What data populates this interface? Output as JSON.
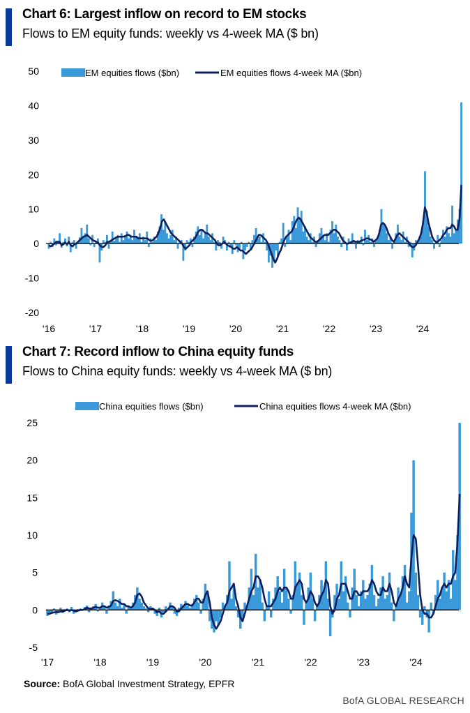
{
  "footer": {
    "source_label": "Source:",
    "source_text": " BofA Global Investment Strategy, EPFR",
    "brand": "BofA GLOBAL RESEARCH"
  },
  "colors": {
    "bar": "#3a9ad9",
    "line": "#0d1f5c",
    "accent": "#0a3a9c",
    "axis": "#000000"
  },
  "chart_data": [
    {
      "id": "chart6",
      "type": "bar",
      "title": "Chart 6: Largest inflow on record to EM stocks",
      "subtitle": "Flows to EM equity funds: weekly vs 4-week MA ($ bn)",
      "xlabel": "",
      "ylabel": "",
      "ylim": [
        -20,
        50
      ],
      "yticks": [
        50,
        40,
        30,
        20,
        10,
        0,
        -10,
        -20
      ],
      "xticks": [
        "'16",
        "'17",
        "'18",
        "'19",
        "'20",
        "'21",
        "'22",
        "'23",
        "'24"
      ],
      "x_start_year": 2016.0,
      "x_end_year": 2024.83,
      "legend": {
        "position": "top",
        "entries": [
          "EM equities flows ($bn)",
          "EM equities flows 4-week MA ($bn)"
        ]
      },
      "series": [
        {
          "name": "EM equities flows ($bn)",
          "kind": "bar",
          "values": [
            -1.5,
            0.5,
            -1.0,
            1.5,
            -0.5,
            0.8,
            3.0,
            -1.2,
            0.5,
            1.5,
            -0.8,
            2.0,
            -2.5,
            0.5,
            1.0,
            -1.5,
            0.2,
            1.8,
            4.5,
            2.0,
            3.0,
            5.5,
            1.5,
            -0.5,
            2.5,
            -1.0,
            0.5,
            1.5,
            -5.5,
            -2.0,
            1.0,
            0.5,
            2.5,
            -1.5,
            1.0,
            3.5,
            0.8,
            1.5,
            2.5,
            0.5,
            3.0,
            1.0,
            2.0,
            3.5,
            1.5,
            2.5,
            1.0,
            4.0,
            2.0,
            1.5,
            3.0,
            0.5,
            2.0,
            1.0,
            3.5,
            -1.0,
            1.5,
            0.5,
            2.0,
            1.0,
            3.5,
            5.0,
            8.5,
            4.0,
            6.5,
            3.0,
            1.5,
            2.5,
            4.0,
            1.0,
            2.0,
            -1.5,
            0.5,
            1.0,
            -5.0,
            -2.0,
            1.0,
            0.5,
            1.5,
            -1.0,
            2.0,
            3.5,
            5.0,
            2.5,
            4.0,
            1.5,
            3.0,
            5.5,
            2.0,
            1.0,
            3.0,
            0.5,
            -2.0,
            1.0,
            0.5,
            -1.5,
            2.0,
            1.0,
            -2.0,
            0.5,
            -1.0,
            -3.0,
            1.0,
            -0.5,
            -2.5,
            -1.5,
            0.5,
            -4.5,
            -2.0,
            -1.0,
            0.5,
            -2.0,
            1.0,
            2.5,
            4.5,
            1.5,
            2.0,
            0.5,
            3.0,
            0.5,
            -2.0,
            -5.5,
            -3.5,
            -7.0,
            -5.0,
            -2.0,
            -3.5,
            0.5,
            1.5,
            6.0,
            -1.0,
            2.0,
            4.0,
            1.0,
            6.5,
            8.0,
            4.5,
            10.5,
            7.0,
            9.5,
            3.5,
            5.0,
            2.0,
            1.0,
            3.0,
            0.5,
            2.0,
            -1.0,
            1.0,
            3.0,
            4.5,
            2.5,
            1.0,
            3.0,
            0.5,
            4.0,
            6.5,
            3.0,
            5.5,
            2.0,
            1.0,
            -1.0,
            2.0,
            0.5,
            -2.0,
            1.5,
            0.5,
            3.0,
            0.5,
            -1.5,
            1.0,
            0.5,
            2.0,
            -0.5,
            4.0,
            1.0,
            2.5,
            0.5,
            1.5,
            -1.0,
            1.0,
            2.0,
            4.0,
            10.0,
            6.0,
            5.0,
            3.0,
            1.0,
            2.0,
            -1.5,
            0.5,
            3.0,
            5.5,
            2.0,
            1.0,
            3.5,
            0.5,
            2.0,
            -1.0,
            0.5,
            -4.0,
            -2.0,
            1.0,
            0.5,
            2.0,
            3.5,
            6.0,
            21.0,
            9.5,
            5.0,
            2.0,
            1.0,
            -1.5,
            0.5,
            2.5,
            -1.0,
            1.0,
            4.0,
            2.0,
            5.0,
            3.0,
            2.0,
            11.0,
            3.0,
            4.0,
            7.0,
            10.0,
            41.0
          ]
        },
        {
          "name": "EM equities flows 4-week MA ($bn)",
          "kind": "line",
          "values": [
            -0.5,
            -0.8,
            -0.5,
            0.0,
            0.5,
            0.5,
            0.5,
            -0.5,
            -0.2,
            0.3,
            -0.2,
            0.5,
            -0.5,
            -0.8,
            -0.2,
            0.0,
            0.5,
            1.0,
            1.5,
            2.0,
            2.2,
            2.5,
            2.0,
            1.5,
            1.0,
            0.8,
            0.5,
            0.3,
            -0.5,
            -1.0,
            -1.0,
            -0.5,
            0.5,
            0.5,
            0.8,
            1.2,
            1.5,
            1.8,
            2.0,
            2.0,
            2.0,
            2.0,
            2.2,
            2.5,
            2.5,
            2.0,
            2.0,
            2.0,
            2.0,
            1.5,
            1.5,
            1.5,
            1.5,
            1.5,
            1.5,
            1.0,
            0.8,
            1.0,
            1.5,
            2.0,
            3.0,
            4.5,
            6.5,
            7.0,
            6.0,
            5.0,
            4.0,
            3.0,
            2.5,
            2.0,
            1.5,
            1.0,
            0.5,
            0.0,
            -1.0,
            -1.5,
            -1.0,
            -0.5,
            0.5,
            1.0,
            1.5,
            2.5,
            3.5,
            4.0,
            4.0,
            3.5,
            3.0,
            3.0,
            2.5,
            2.0,
            1.5,
            1.0,
            0.0,
            -0.5,
            -0.5,
            0.0,
            0.5,
            0.0,
            -0.5,
            -0.8,
            -1.0,
            -1.5,
            -1.5,
            -1.0,
            -1.5,
            -2.0,
            -2.0,
            -2.5,
            -3.0,
            -2.5,
            -2.0,
            -1.5,
            -0.5,
            0.5,
            1.5,
            2.5,
            2.5,
            2.0,
            1.5,
            1.0,
            0.0,
            -1.5,
            -3.0,
            -4.5,
            -5.5,
            -4.5,
            -3.0,
            -2.0,
            -0.5,
            1.0,
            2.0,
            2.5,
            3.0,
            3.5,
            4.5,
            6.0,
            7.0,
            7.5,
            7.0,
            6.0,
            5.0,
            4.0,
            3.0,
            2.0,
            1.5,
            1.0,
            0.5,
            0.5,
            1.0,
            1.5,
            2.0,
            2.5,
            2.5,
            2.5,
            3.0,
            3.5,
            4.0,
            4.0,
            3.5,
            3.0,
            2.0,
            1.0,
            0.5,
            0.0,
            0.0,
            0.3,
            0.5,
            0.8,
            0.5,
            0.5,
            0.5,
            0.8,
            1.0,
            1.2,
            1.5,
            1.5,
            1.2,
            1.0,
            0.5,
            1.0,
            1.5,
            3.0,
            5.5,
            6.0,
            5.5,
            4.5,
            3.0,
            2.0,
            1.0,
            0.5,
            1.5,
            2.5,
            3.0,
            2.5,
            2.0,
            1.5,
            1.0,
            0.5,
            -0.5,
            -1.0,
            -1.0,
            -0.5,
            0.5,
            1.5,
            3.0,
            6.0,
            10.5,
            9.0,
            6.0,
            4.0,
            2.0,
            1.0,
            0.5,
            0.5,
            1.0,
            1.5,
            2.5,
            3.0,
            4.0,
            4.5,
            4.5,
            5.5,
            5.0,
            4.0,
            4.0,
            7.0,
            17.0
          ]
        }
      ]
    },
    {
      "id": "chart7",
      "type": "bar",
      "title": "Chart 7: Record inflow to China equity funds",
      "subtitle": "Flows to China equity funds: weekly vs 4-week MA ($ bn)",
      "xlabel": "",
      "ylabel": "",
      "ylim": [
        -5,
        25
      ],
      "yticks": [
        25,
        20,
        15,
        10,
        5,
        0,
        -5
      ],
      "xticks": [
        "'17",
        "'18",
        "'19",
        "'20",
        "'21",
        "'22",
        "'23",
        "'24"
      ],
      "x_start_year": 2017.0,
      "x_end_year": 2024.83,
      "legend": {
        "position": "top",
        "entries": [
          "China equities flows ($bn)",
          "China equities flows 4-week MA ($bn)"
        ]
      },
      "series": [
        {
          "name": "China equities flows ($bn)",
          "kind": "bar",
          "values": [
            -0.8,
            -0.5,
            -0.3,
            0.2,
            -0.6,
            -0.2,
            0.3,
            -0.4,
            0.1,
            0.2,
            -0.3,
            0.4,
            -0.5,
            -0.2,
            0.1,
            0.2,
            -0.1,
            0.4,
            0.6,
            -0.3,
            0.2,
            0.5,
            0.8,
            -0.2,
            0.3,
            1.0,
            0.5,
            -0.5,
            0.6,
            1.2,
            2.5,
            1.0,
            0.5,
            1.5,
            0.3,
            0.8,
            -0.5,
            0.5,
            0.3,
            1.0,
            2.0,
            3.0,
            1.5,
            1.0,
            0.5,
            0.2,
            -0.3,
            0.5,
            0.2,
            -0.5,
            -0.8,
            0.3,
            -1.0,
            -0.3,
            0.5,
            0.2,
            1.0,
            0.5,
            -0.5,
            -0.8,
            0.3,
            0.8,
            0.5,
            1.2,
            0.6,
            0.3,
            0.8,
            1.5,
            2.0,
            1.0,
            -0.5,
            1.5,
            3.5,
            2.5,
            -1.5,
            -2.5,
            -3.0,
            -1.5,
            -2.0,
            -1.0,
            1.0,
            0.5,
            2.0,
            6.5,
            1.5,
            3.5,
            0.5,
            -1.0,
            -2.5,
            -1.5,
            1.0,
            0.5,
            3.0,
            5.5,
            2.0,
            7.5,
            3.0,
            4.0,
            1.0,
            -1.5,
            0.5,
            2.5,
            -1.0,
            1.5,
            3.0,
            4.5,
            2.5,
            1.0,
            5.5,
            3.0,
            1.5,
            -0.5,
            2.0,
            6.5,
            3.5,
            5.0,
            2.0,
            -2.0,
            1.0,
            3.0,
            5.0,
            1.5,
            -1.5,
            0.5,
            2.0,
            4.0,
            2.5,
            6.5,
            1.5,
            -3.5,
            -1.0,
            2.0,
            3.5,
            1.5,
            6.5,
            2.5,
            4.5,
            1.0,
            -1.0,
            3.0,
            5.5,
            2.0,
            0.5,
            2.5,
            4.0,
            1.5,
            2.0,
            3.5,
            6.0,
            2.0,
            0.5,
            1.5,
            3.0,
            4.5,
            1.5,
            2.0,
            5.0,
            1.0,
            -1.5,
            0.5,
            3.0,
            2.0,
            4.5,
            6.0,
            1.0,
            2.5,
            13.0,
            20.0,
            5.0,
            2.0,
            -1.0,
            -2.0,
            0.5,
            -1.0,
            -3.0,
            1.0,
            -0.5,
            2.0,
            4.0,
            1.5,
            3.0,
            5.0,
            2.5,
            4.0,
            1.5,
            8.0,
            4.0,
            10.0,
            25.0
          ]
        },
        {
          "name": "China equities flows 4-week MA ($bn)",
          "kind": "line",
          "values": [
            -0.5,
            -0.5,
            -0.4,
            -0.3,
            -0.3,
            -0.3,
            -0.2,
            -0.2,
            -0.1,
            0.0,
            -0.1,
            0.0,
            -0.1,
            -0.2,
            -0.1,
            0.0,
            0.0,
            0.1,
            0.3,
            0.2,
            0.2,
            0.3,
            0.4,
            0.3,
            0.3,
            0.5,
            0.5,
            0.3,
            0.4,
            0.6,
            1.2,
            1.3,
            1.2,
            1.0,
            0.8,
            0.8,
            0.5,
            0.5,
            0.3,
            0.5,
            1.0,
            2.0,
            2.2,
            1.8,
            1.0,
            0.6,
            0.2,
            0.1,
            0.2,
            0.0,
            -0.3,
            -0.2,
            -0.5,
            -0.5,
            -0.2,
            0.1,
            0.5,
            0.5,
            0.3,
            -0.2,
            -0.2,
            0.2,
            0.5,
            0.8,
            0.8,
            0.6,
            0.6,
            1.0,
            1.5,
            1.5,
            1.0,
            1.0,
            2.0,
            2.5,
            1.0,
            -1.0,
            -2.0,
            -2.5,
            -2.0,
            -1.5,
            -0.5,
            0.5,
            1.0,
            2.5,
            3.0,
            3.5,
            1.5,
            0.5,
            -1.0,
            -1.5,
            -0.5,
            0.5,
            1.5,
            2.5,
            3.0,
            4.5,
            4.5,
            4.0,
            3.0,
            1.5,
            0.5,
            0.5,
            0.5,
            1.0,
            1.5,
            2.5,
            3.0,
            2.5,
            3.0,
            3.0,
            2.5,
            1.5,
            1.5,
            3.0,
            3.5,
            4.0,
            3.5,
            1.5,
            1.0,
            1.5,
            2.5,
            2.0,
            1.0,
            0.5,
            1.0,
            2.0,
            2.5,
            4.0,
            3.5,
            0.5,
            -0.5,
            0.0,
            1.5,
            2.0,
            3.5,
            3.5,
            3.5,
            2.5,
            1.5,
            1.5,
            2.5,
            2.5,
            2.0,
            2.0,
            2.5,
            2.5,
            2.5,
            3.0,
            4.0,
            3.5,
            2.5,
            2.0,
            2.0,
            3.0,
            2.5,
            2.5,
            3.5,
            2.5,
            1.0,
            0.5,
            1.5,
            2.0,
            3.0,
            4.5,
            3.5,
            3.0,
            7.0,
            10.0,
            9.5,
            6.0,
            2.0,
            0.0,
            -0.5,
            -0.5,
            -1.0,
            -1.0,
            -0.5,
            0.5,
            1.5,
            2.0,
            3.0,
            3.5,
            3.0,
            3.5,
            3.5,
            4.5,
            5.0,
            9.0,
            15.5
          ]
        }
      ]
    }
  ]
}
